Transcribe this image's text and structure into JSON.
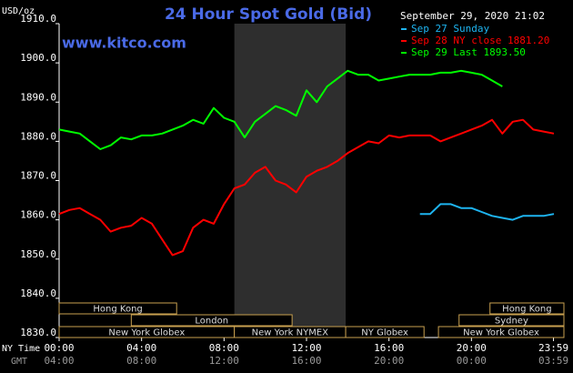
{
  "chart_data": {
    "type": "line",
    "title": "24 Hour Spot Gold (Bid)",
    "site": "www.kitco.com",
    "y_label": "USD/oz",
    "legend_title": "September 29, 2020 21:02",
    "x_row_labels": [
      "NY Time",
      "GMT"
    ],
    "x": [
      0,
      0.5,
      1,
      1.5,
      2,
      2.5,
      3,
      3.5,
      4,
      4.5,
      5,
      5.5,
      6,
      6.5,
      7,
      7.5,
      8,
      8.5,
      9,
      9.5,
      10,
      10.5,
      11,
      11.5,
      12,
      12.5,
      13,
      13.5,
      14,
      14.5,
      15,
      15.5,
      16,
      16.5,
      17,
      17.5,
      18,
      18.5,
      19,
      19.5,
      20,
      20.5,
      21,
      21.5,
      22,
      22.5,
      23,
      23.5,
      24
    ],
    "series": [
      {
        "name": "Sep 27 Sunday",
        "color": "#1eb4f0",
        "values": [
          null,
          null,
          null,
          null,
          null,
          null,
          null,
          null,
          null,
          null,
          null,
          null,
          null,
          null,
          null,
          null,
          null,
          null,
          null,
          null,
          null,
          null,
          null,
          null,
          null,
          null,
          null,
          null,
          null,
          null,
          null,
          null,
          null,
          null,
          null,
          1861.5,
          1861.5,
          1864,
          1864,
          1863,
          1863,
          1862,
          1861,
          1860.5,
          1860,
          1861,
          1861,
          1861,
          1861.5
        ]
      },
      {
        "name": "Sep 28 NY close 1881.20",
        "color": "#ff0000",
        "values": [
          1861.5,
          1862.5,
          1863,
          1861.5,
          1860,
          1857,
          1858,
          1858.5,
          1860.5,
          1859,
          1855,
          1851,
          1852,
          1858,
          1860,
          1859,
          1864,
          1868,
          1869,
          1872,
          1873.5,
          1870,
          1869,
          1867,
          1871,
          1872.5,
          1873.5,
          1875,
          1877,
          1878.5,
          1880,
          1879.5,
          1881.5,
          1881,
          1881.5,
          1881.5,
          1881.5,
          1880,
          1881,
          1882,
          1883,
          1884,
          1885.5,
          1882,
          1885,
          1885.5,
          1883,
          1882.5,
          1882
        ]
      },
      {
        "name": "Sep 29 Last 1893.50",
        "color": "#00ff00",
        "values": [
          1883,
          1882.5,
          1882,
          1880,
          1878,
          1879,
          1881,
          1880.5,
          1881.5,
          1881.5,
          1882,
          1883,
          1884,
          1885.5,
          1884.5,
          1888.5,
          1886,
          1885,
          1881,
          1885,
          1887,
          1889,
          1888,
          1886.5,
          1893,
          1890,
          1894,
          1896,
          1898,
          1897,
          1897,
          1895.5,
          1896,
          1896.5,
          1897,
          1897,
          1897,
          1897.5,
          1897.5,
          1898,
          1897.5,
          1897,
          1895.5,
          1894,
          null,
          null,
          null,
          null,
          null
        ]
      }
    ],
    "xlim": [
      0,
      24
    ],
    "xticks": [
      {
        "value": 0,
        "label": "00:00"
      },
      {
        "value": 4,
        "label": "04:00"
      },
      {
        "value": 8,
        "label": "08:00"
      },
      {
        "value": 12,
        "label": "12:00"
      },
      {
        "value": 16,
        "label": "16:00"
      },
      {
        "value": 20,
        "label": "20:00"
      },
      {
        "value": 23.98,
        "label": "23:59"
      }
    ],
    "gmt_labels": [
      "04:00",
      "08:00",
      "12:00",
      "16:00",
      "20:00",
      "00:00",
      "03:59"
    ],
    "ylim": [
      1830,
      1910
    ],
    "yticks": [
      {
        "value": 1830,
        "label": "1830.0"
      },
      {
        "value": 1840,
        "label": "1840.0"
      },
      {
        "value": 1850,
        "label": "1850.0"
      },
      {
        "value": 1860,
        "label": "1860.0"
      },
      {
        "value": 1870,
        "label": "1870.0"
      },
      {
        "value": 1880,
        "label": "1880.0"
      },
      {
        "value": 1890,
        "label": "1890.0"
      },
      {
        "value": 1900,
        "label": "1900.0"
      },
      {
        "value": 1910,
        "label": "1910.0"
      }
    ],
    "shaded_range": [
      8.5,
      13.9
    ],
    "sessions": [
      [
        {
          "label": "Hong Kong",
          "start": 0,
          "end": 5.7
        },
        {
          "label": "Hong Kong",
          "start": 20.9,
          "end": 24.5
        }
      ],
      [
        {
          "label": "London",
          "start": 3.5,
          "end": 11.3
        },
        {
          "label": "Sydney",
          "start": 19.4,
          "end": 24.5
        }
      ],
      [
        {
          "label": "New York Globex",
          "start": 0,
          "end": 8.5
        },
        {
          "label": "New York NYMEX",
          "start": 8.5,
          "end": 13.9
        },
        {
          "label": "NY Globex",
          "start": 13.9,
          "end": 17.7
        },
        {
          "label": "New York Globex",
          "start": 18.4,
          "end": 24.5
        }
      ]
    ]
  }
}
